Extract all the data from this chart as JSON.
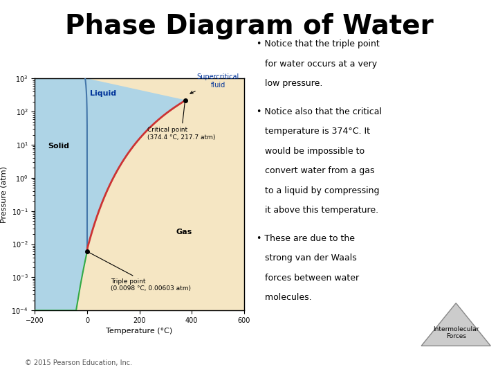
{
  "title": "Phase Diagram of Water",
  "title_fontsize": 28,
  "title_fontweight": "bold",
  "xlabel": "Temperature (°C)",
  "ylabel": "Pressure (atm)",
  "xlim": [
    -200,
    600
  ],
  "bg_color": "#ffffff",
  "solid_color": "#aed4e6",
  "liquid_color": "#aed4e6",
  "gas_color": "#f5e6c3",
  "fusion_line_color": "#4477aa",
  "vaporization_line_color": "#cc3333",
  "sublimation_line_color": "#33aa44",
  "triple_point": [
    0.0098,
    0.00603
  ],
  "critical_point": [
    374.4,
    217.7
  ],
  "triple_label": "Triple point\n(0.0098 °C, 0.00603 atm)",
  "critical_label": "Critical point\n(374.4 °C, 217.7 atm)",
  "supercritical_label": "Supercritical\nfluid",
  "solid_label": "Solid",
  "liquid_label": "Liquid",
  "gas_label": "Gas",
  "copyright": "© 2015 Pearson Education, Inc.",
  "bullet1": "Notice that the triple point\nfor water occurs at a very\nlow pressure.",
  "bullet2": "Notice also that the critical\ntemperature is 374°C. It\nwould be impossible to\nconvert water from a gas\nto a liquid by compressing\nit above this temperature.",
  "bullet3": "These are due to the\nstrong van der Waals\nforces between water\nmolecules.",
  "intermolecular_label": "Intermolecular\nForces"
}
